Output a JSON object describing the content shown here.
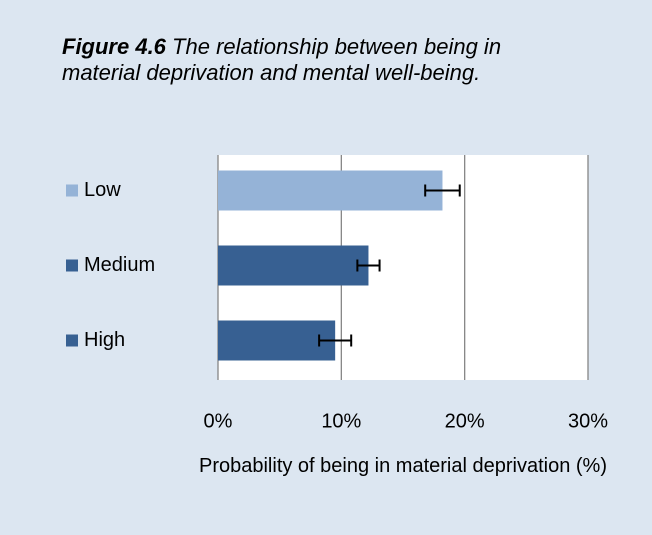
{
  "chart_data": {
    "type": "bar",
    "orientation": "horizontal",
    "title_label": "Figure 4.6",
    "title": "The relationship between being in material deprivation and mental well-being.",
    "categories": [
      "Low",
      "Medium",
      "High"
    ],
    "values": [
      18.2,
      12.2,
      9.5
    ],
    "errors": [
      1.4,
      0.9,
      1.3
    ],
    "colors": [
      "#95b3d7",
      "#376092",
      "#376092"
    ],
    "xlim": [
      0,
      30
    ],
    "xticks": [
      {
        "value": 0,
        "label": "0%"
      },
      {
        "value": 10,
        "label": "10%"
      },
      {
        "value": 20,
        "label": "20%"
      },
      {
        "value": 30,
        "label": "30%"
      }
    ],
    "xlabel": "Probability of being in material deprivation (%)",
    "grid": true
  }
}
